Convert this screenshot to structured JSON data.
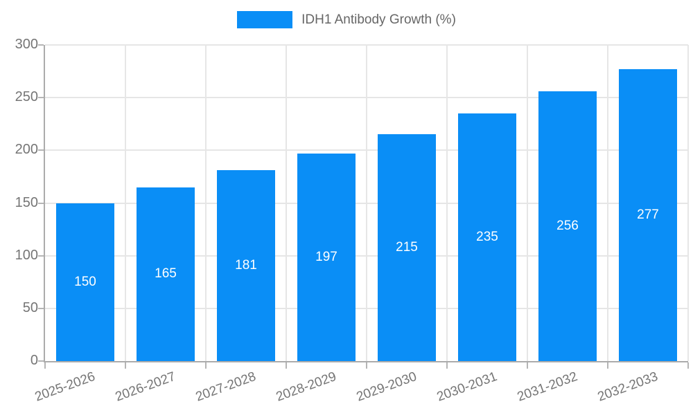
{
  "chart_data": {
    "type": "bar",
    "title": "",
    "legend_label": "IDH1 Antibody Growth (%)",
    "legend_position": "top",
    "categories": [
      "2025-2026",
      "2026-2027",
      "2027-2028",
      "2028-2029",
      "2029-2030",
      "2030-2031",
      "2031-2032",
      "2032-2033"
    ],
    "values": [
      150,
      165,
      181,
      197,
      215,
      235,
      256,
      277
    ],
    "xlabel": "",
    "ylabel": "",
    "ylim": [
      0,
      300
    ],
    "ytick_step": 50,
    "grid": true,
    "x_label_rotation_deg": -20,
    "value_labels_position": "center-inside",
    "colors": {
      "bar": "#0a8ef6",
      "grid": "#e6e6e6",
      "axis": "#ababab",
      "tick_label": "#757575",
      "value_label": "#ffffff",
      "legend_text": "#666666",
      "background": "#ffffff"
    }
  }
}
